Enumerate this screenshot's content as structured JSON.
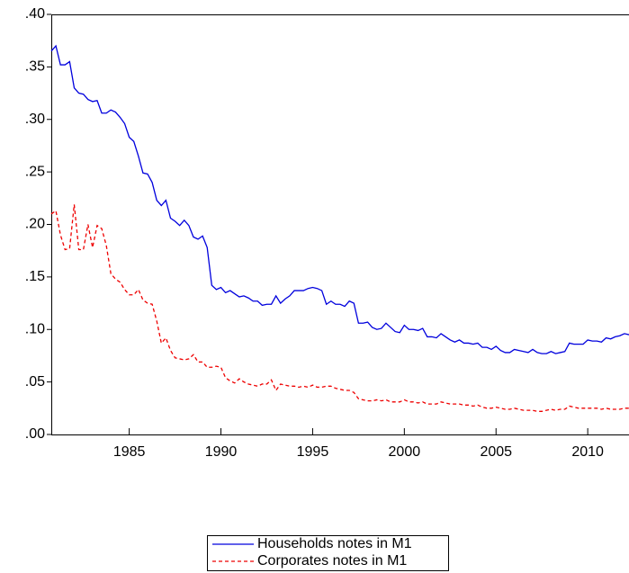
{
  "chart_data": {
    "type": "line",
    "x": [
      1980.75,
      1981,
      1981.25,
      1981.5,
      1981.75,
      1982,
      1982.25,
      1982.5,
      1982.75,
      1983,
      1983.25,
      1983.5,
      1983.75,
      1984,
      1984.25,
      1984.5,
      1984.75,
      1985,
      1985.25,
      1985.5,
      1985.75,
      1986,
      1986.25,
      1986.5,
      1986.75,
      1987,
      1987.25,
      1987.5,
      1987.75,
      1988,
      1988.25,
      1988.5,
      1988.75,
      1989,
      1989.25,
      1989.5,
      1989.75,
      1990,
      1990.25,
      1990.5,
      1990.75,
      1991,
      1991.25,
      1991.5,
      1991.75,
      1992,
      1992.25,
      1992.5,
      1992.75,
      1993,
      1993.25,
      1993.5,
      1993.75,
      1994,
      1994.25,
      1994.5,
      1994.75,
      1995,
      1995.25,
      1995.5,
      1995.75,
      1996,
      1996.25,
      1996.5,
      1996.75,
      1997,
      1997.25,
      1997.5,
      1997.75,
      1998,
      1998.25,
      1998.5,
      1998.75,
      1999,
      1999.25,
      1999.5,
      1999.75,
      2000,
      2000.25,
      2000.5,
      2000.75,
      2001,
      2001.25,
      2001.5,
      2001.75,
      2002,
      2002.25,
      2002.5,
      2002.75,
      2003,
      2003.25,
      2003.5,
      2003.75,
      2004,
      2004.25,
      2004.5,
      2004.75,
      2005,
      2005.25,
      2005.5,
      2005.75,
      2006,
      2006.25,
      2006.5,
      2006.75,
      2007,
      2007.25,
      2007.5,
      2007.75,
      2008,
      2008.25,
      2008.5,
      2008.75,
      2009,
      2009.25,
      2009.5,
      2009.75,
      2010,
      2010.25,
      2010.5,
      2010.75,
      2011,
      2011.25,
      2011.5,
      2011.75,
      2012,
      2012.25
    ],
    "series": [
      {
        "name": "Households notes in M1",
        "color": "#0000dd",
        "dash": false,
        "values": [
          0.365,
          0.37,
          0.352,
          0.352,
          0.355,
          0.33,
          0.325,
          0.324,
          0.319,
          0.317,
          0.318,
          0.306,
          0.306,
          0.309,
          0.307,
          0.302,
          0.296,
          0.283,
          0.279,
          0.265,
          0.249,
          0.248,
          0.24,
          0.223,
          0.218,
          0.223,
          0.206,
          0.203,
          0.199,
          0.204,
          0.199,
          0.188,
          0.186,
          0.189,
          0.178,
          0.142,
          0.138,
          0.14,
          0.135,
          0.137,
          0.134,
          0.131,
          0.132,
          0.13,
          0.127,
          0.127,
          0.123,
          0.124,
          0.124,
          0.132,
          0.125,
          0.129,
          0.132,
          0.137,
          0.137,
          0.137,
          0.139,
          0.14,
          0.139,
          0.137,
          0.124,
          0.127,
          0.124,
          0.124,
          0.122,
          0.127,
          0.125,
          0.106,
          0.106,
          0.107,
          0.102,
          0.1,
          0.101,
          0.106,
          0.102,
          0.098,
          0.097,
          0.104,
          0.1,
          0.1,
          0.099,
          0.101,
          0.093,
          0.093,
          0.092,
          0.096,
          0.093,
          0.09,
          0.088,
          0.09,
          0.087,
          0.087,
          0.086,
          0.087,
          0.083,
          0.083,
          0.081,
          0.084,
          0.08,
          0.078,
          0.078,
          0.081,
          0.08,
          0.079,
          0.078,
          0.081,
          0.078,
          0.077,
          0.077,
          0.079,
          0.077,
          0.078,
          0.079,
          0.087,
          0.086,
          0.086,
          0.086,
          0.09,
          0.089,
          0.089,
          0.088,
          0.092,
          0.091,
          0.093,
          0.094,
          0.096,
          0.095
        ]
      },
      {
        "name": "Corporates notes in M1",
        "color": "#ee0000",
        "dash": true,
        "values": [
          0.21,
          0.213,
          0.19,
          0.176,
          0.177,
          0.219,
          0.176,
          0.176,
          0.2,
          0.178,
          0.199,
          0.196,
          0.18,
          0.153,
          0.148,
          0.145,
          0.138,
          0.133,
          0.133,
          0.138,
          0.128,
          0.125,
          0.124,
          0.108,
          0.087,
          0.092,
          0.08,
          0.073,
          0.072,
          0.071,
          0.072,
          0.076,
          0.069,
          0.069,
          0.064,
          0.064,
          0.065,
          0.064,
          0.054,
          0.051,
          0.049,
          0.053,
          0.05,
          0.048,
          0.047,
          0.046,
          0.048,
          0.048,
          0.052,
          0.042,
          0.048,
          0.047,
          0.046,
          0.046,
          0.045,
          0.046,
          0.045,
          0.047,
          0.045,
          0.045,
          0.046,
          0.046,
          0.044,
          0.043,
          0.042,
          0.042,
          0.04,
          0.034,
          0.033,
          0.032,
          0.032,
          0.033,
          0.032,
          0.033,
          0.031,
          0.031,
          0.031,
          0.033,
          0.031,
          0.031,
          0.03,
          0.031,
          0.029,
          0.029,
          0.029,
          0.031,
          0.03,
          0.029,
          0.029,
          0.029,
          0.028,
          0.028,
          0.027,
          0.028,
          0.026,
          0.025,
          0.025,
          0.026,
          0.025,
          0.024,
          0.024,
          0.025,
          0.024,
          0.023,
          0.023,
          0.023,
          0.022,
          0.022,
          0.023,
          0.024,
          0.023,
          0.024,
          0.024,
          0.027,
          0.026,
          0.025,
          0.025,
          0.025,
          0.025,
          0.025,
          0.024,
          0.025,
          0.024,
          0.024,
          0.024,
          0.025,
          0.025
        ]
      }
    ],
    "xlim": [
      1980.75,
      2012.25
    ],
    "xticks": [
      1985,
      1990,
      1995,
      2000,
      2005,
      2010
    ],
    "ylim": [
      0,
      0.4
    ],
    "yticks": [
      {
        "value": 0,
        "label": ".00"
      },
      {
        "value": 0.05,
        "label": ".05"
      },
      {
        "value": 0.1,
        "label": ".10"
      },
      {
        "value": 0.15,
        "label": ".15"
      },
      {
        "value": 0.2,
        "label": ".20"
      },
      {
        "value": 0.25,
        "label": ".25"
      },
      {
        "value": 0.3,
        "label": ".30"
      },
      {
        "value": 0.35,
        "label": ".35"
      },
      {
        "value": 0.4,
        "label": ".40"
      }
    ],
    "grid": false,
    "legend": "bottom"
  }
}
